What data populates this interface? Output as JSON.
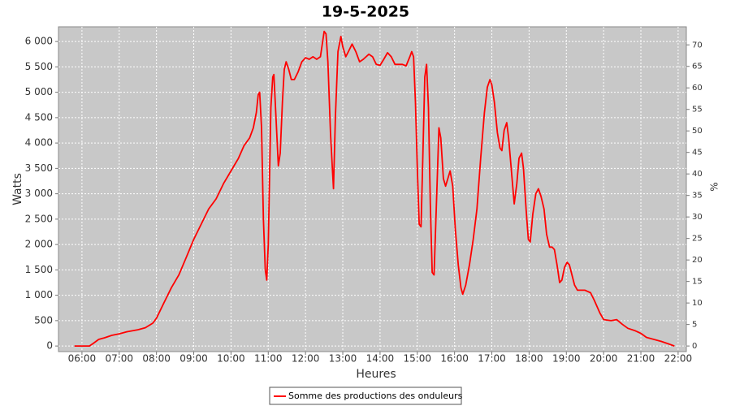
{
  "chart_data": {
    "type": "line",
    "title": "19-5-2025",
    "xlabel": "Heures",
    "ylabel": "Watts",
    "y2label": "%",
    "x": [
      5.8,
      6.2,
      6.3,
      6.45,
      6.6,
      6.8,
      7.0,
      7.2,
      7.5,
      7.7,
      7.9,
      8.0,
      8.2,
      8.4,
      8.6,
      8.8,
      9.0,
      9.2,
      9.4,
      9.6,
      9.8,
      10.0,
      10.2,
      10.35,
      10.5,
      10.6,
      10.68,
      10.73,
      10.77,
      10.82,
      10.87,
      10.92,
      10.96,
      11.0,
      11.07,
      11.12,
      11.15,
      11.2,
      11.27,
      11.32,
      11.38,
      11.43,
      11.48,
      11.55,
      11.62,
      11.7,
      11.8,
      11.9,
      12.0,
      12.1,
      12.2,
      12.3,
      12.4,
      12.5,
      12.55,
      12.6,
      12.67,
      12.72,
      12.75,
      12.8,
      12.87,
      12.95,
      13.0,
      13.08,
      13.15,
      13.25,
      13.35,
      13.45,
      13.55,
      13.7,
      13.8,
      13.9,
      14.0,
      14.1,
      14.2,
      14.3,
      14.4,
      14.5,
      14.6,
      14.7,
      14.8,
      14.85,
      14.9,
      14.95,
      15.0,
      15.05,
      15.1,
      15.15,
      15.2,
      15.25,
      15.3,
      15.35,
      15.4,
      15.45,
      15.5,
      15.58,
      15.63,
      15.7,
      15.76,
      15.82,
      15.88,
      15.95,
      16.02,
      16.1,
      16.17,
      16.22,
      16.3,
      16.4,
      16.5,
      16.6,
      16.7,
      16.8,
      16.88,
      16.95,
      17.0,
      17.07,
      17.15,
      17.22,
      17.27,
      17.33,
      17.4,
      17.45,
      17.52,
      17.6,
      17.67,
      17.73,
      17.8,
      17.85,
      17.92,
      17.98,
      18.03,
      18.1,
      18.18,
      18.25,
      18.32,
      18.4,
      18.47,
      18.55,
      18.62,
      18.68,
      18.75,
      18.82,
      18.88,
      18.95,
      19.02,
      19.08,
      19.15,
      19.22,
      19.3,
      19.5,
      19.65,
      19.75,
      19.9,
      20.0,
      20.2,
      20.35,
      20.5,
      20.65,
      20.85,
      21.0,
      21.15,
      21.35,
      21.55,
      21.75,
      21.9
    ],
    "series": [
      {
        "name": "Somme des productions des onduleurs",
        "color": "#ff0000",
        "values": [
          0,
          0,
          50,
          130,
          160,
          210,
          240,
          280,
          320,
          360,
          450,
          550,
          850,
          1150,
          1400,
          1750,
          2100,
          2400,
          2700,
          2900,
          3200,
          3450,
          3700,
          3950,
          4100,
          4300,
          4600,
          4950,
          5000,
          4300,
          2500,
          1500,
          1300,
          2000,
          4700,
          5300,
          5350,
          4600,
          3550,
          3800,
          4800,
          5450,
          5600,
          5450,
          5250,
          5250,
          5400,
          5600,
          5680,
          5650,
          5700,
          5650,
          5700,
          6200,
          6150,
          5600,
          4200,
          3500,
          3100,
          4500,
          5800,
          6100,
          5900,
          5700,
          5800,
          5950,
          5800,
          5600,
          5650,
          5750,
          5700,
          5550,
          5530,
          5650,
          5780,
          5700,
          5550,
          5550,
          5550,
          5520,
          5700,
          5800,
          5700,
          4800,
          3500,
          2400,
          2350,
          3800,
          5300,
          5550,
          4700,
          2800,
          1450,
          1400,
          2500,
          4300,
          4100,
          3300,
          3150,
          3300,
          3450,
          3150,
          2300,
          1600,
          1150,
          1020,
          1200,
          1600,
          2100,
          2700,
          3700,
          4600,
          5100,
          5250,
          5150,
          4800,
          4200,
          3900,
          3850,
          4250,
          4400,
          4100,
          3500,
          2800,
          3200,
          3700,
          3800,
          3500,
          2700,
          2100,
          2050,
          2600,
          3000,
          3100,
          2950,
          2700,
          2200,
          1950,
          1950,
          1900,
          1600,
          1250,
          1300,
          1550,
          1650,
          1600,
          1400,
          1200,
          1100,
          1100,
          1050,
          900,
          650,
          520,
          500,
          520,
          430,
          350,
          300,
          250,
          170,
          130,
          90,
          40,
          0
        ]
      }
    ],
    "xlim": [
      5.37,
      22.22
    ],
    "xticks": [
      {
        "value": 6,
        "label": "06:00"
      },
      {
        "value": 7,
        "label": "07:00"
      },
      {
        "value": 8,
        "label": "08:00"
      },
      {
        "value": 9,
        "label": "09:00"
      },
      {
        "value": 10,
        "label": "10:00"
      },
      {
        "value": 11,
        "label": "11:00"
      },
      {
        "value": 12,
        "label": "12:00"
      },
      {
        "value": 13,
        "label": "13:00"
      },
      {
        "value": 14,
        "label": "14:00"
      },
      {
        "value": 15,
        "label": "15:00"
      },
      {
        "value": 16,
        "label": "16:00"
      },
      {
        "value": 17,
        "label": "17:00"
      },
      {
        "value": 18,
        "label": "18:00"
      },
      {
        "value": 19,
        "label": "19:00"
      },
      {
        "value": 20,
        "label": "20:00"
      },
      {
        "value": 21,
        "label": "21:00"
      },
      {
        "value": 22,
        "label": "22:00"
      }
    ],
    "ylim": [
      -110,
      6290
    ],
    "yticks": [
      0,
      500,
      {
        "value": 1000,
        "label": "1 000"
      },
      {
        "value": 1500,
        "label": "1 500"
      },
      {
        "value": 2000,
        "label": "2 000"
      },
      {
        "value": 2500,
        "label": "2 500"
      },
      {
        "value": 3000,
        "label": "3 000"
      },
      {
        "value": 3500,
        "label": "3 500"
      },
      {
        "value": 4000,
        "label": "4 000"
      },
      {
        "value": 4500,
        "label": "4 500"
      },
      {
        "value": 5000,
        "label": "5 000"
      },
      {
        "value": 5500,
        "label": "5 500"
      },
      {
        "value": 6000,
        "label": "6 000"
      }
    ],
    "y2lim": [
      -1.3,
      74.2
    ],
    "y2ticks": [
      0,
      5,
      10,
      15,
      20,
      25,
      30,
      35,
      40,
      45,
      50,
      55,
      60,
      65,
      70
    ],
    "grid": true,
    "legend": "bottom"
  }
}
